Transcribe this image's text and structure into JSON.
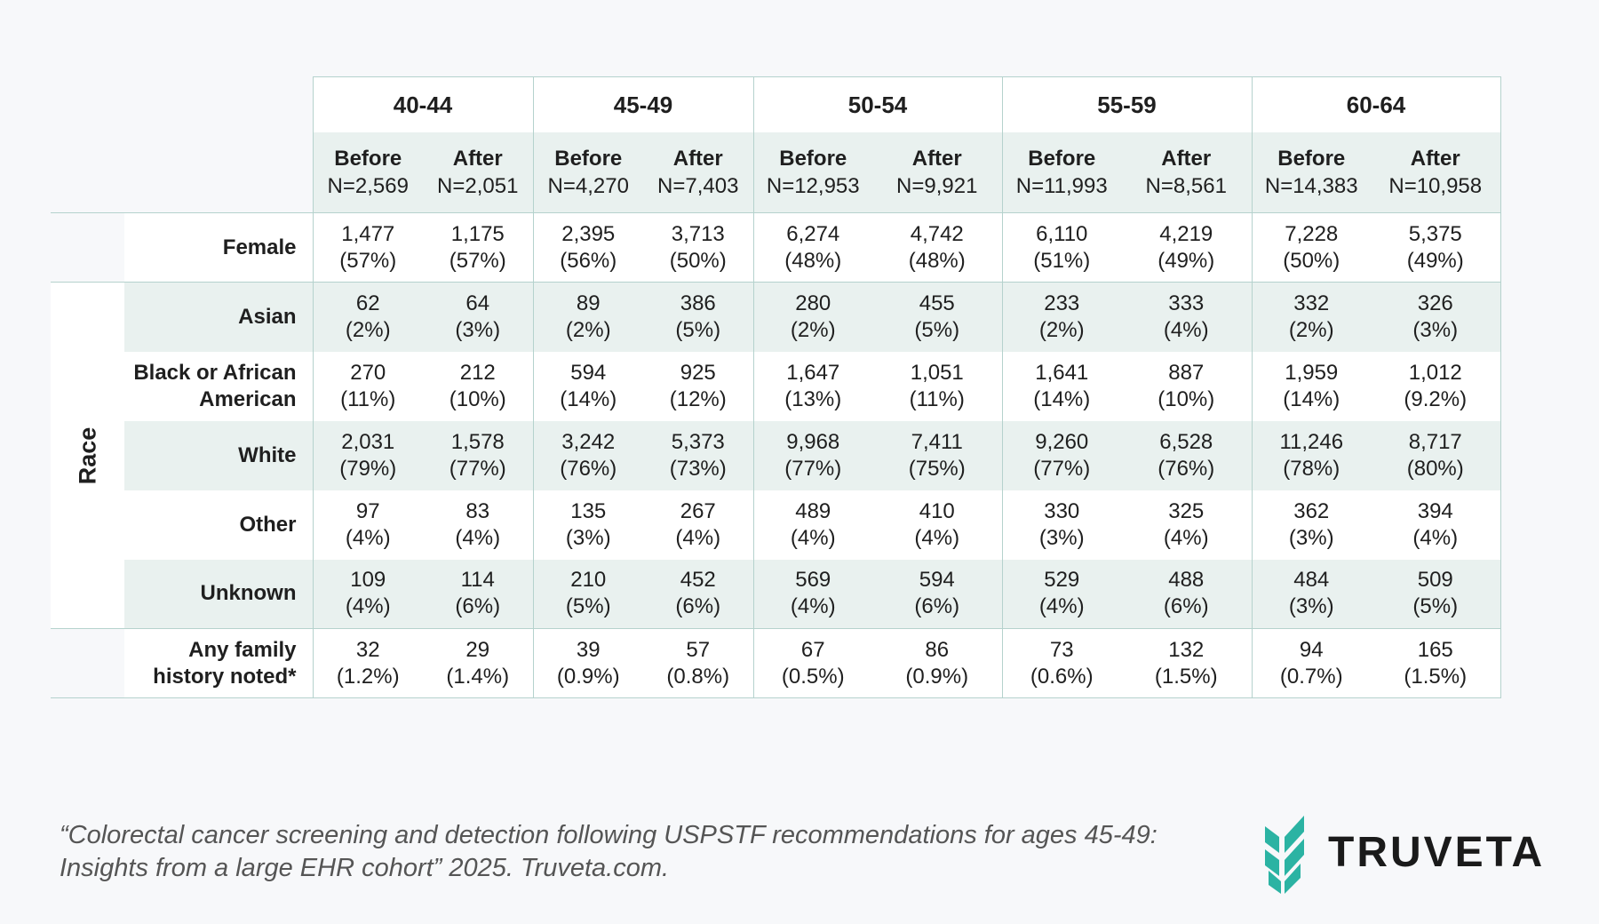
{
  "header": {
    "age_groups": [
      "40-44",
      "45-49",
      "50-54",
      "55-59",
      "60-64"
    ],
    "before_label": "Before",
    "after_label": "After",
    "n_values": [
      [
        "N=2,569",
        "N=2,051"
      ],
      [
        "N=4,270",
        "N=7,403"
      ],
      [
        "N=12,953",
        "N=9,921"
      ],
      [
        "N=11,993",
        "N=8,561"
      ],
      [
        "N=14,383",
        "N=10,958"
      ]
    ]
  },
  "race_label": "Race",
  "rows": [
    {
      "label": "Female",
      "cells": [
        [
          "1,477",
          "(57%)"
        ],
        [
          "1,175",
          "(57%)"
        ],
        [
          "2,395",
          "(56%)"
        ],
        [
          "3,713",
          "(50%)"
        ],
        [
          "6,274",
          "(48%)"
        ],
        [
          "4,742",
          "(48%)"
        ],
        [
          "6,110",
          "(51%)"
        ],
        [
          "4,219",
          "(49%)"
        ],
        [
          "7,228",
          "(50%)"
        ],
        [
          "5,375",
          "(49%)"
        ]
      ]
    },
    {
      "label": "Asian",
      "cells": [
        [
          "62",
          "(2%)"
        ],
        [
          "64",
          "(3%)"
        ],
        [
          "89",
          "(2%)"
        ],
        [
          "386",
          "(5%)"
        ],
        [
          "280",
          "(2%)"
        ],
        [
          "455",
          "(5%)"
        ],
        [
          "233",
          "(2%)"
        ],
        [
          "333",
          "(4%)"
        ],
        [
          "332",
          "(2%)"
        ],
        [
          "326",
          "(3%)"
        ]
      ]
    },
    {
      "label_lines": [
        "Black or African",
        "American"
      ],
      "cells": [
        [
          "270",
          "(11%)"
        ],
        [
          "212",
          "(10%)"
        ],
        [
          "594",
          "(14%)"
        ],
        [
          "925",
          "(12%)"
        ],
        [
          "1,647",
          "(13%)"
        ],
        [
          "1,051",
          "(11%)"
        ],
        [
          "1,641",
          "(14%)"
        ],
        [
          "887",
          "(10%)"
        ],
        [
          "1,959",
          "(14%)"
        ],
        [
          "1,012",
          "(9.2%)"
        ]
      ]
    },
    {
      "label": "White",
      "cells": [
        [
          "2,031",
          "(79%)"
        ],
        [
          "1,578",
          "(77%)"
        ],
        [
          "3,242",
          "(76%)"
        ],
        [
          "5,373",
          "(73%)"
        ],
        [
          "9,968",
          "(77%)"
        ],
        [
          "7,411",
          "(75%)"
        ],
        [
          "9,260",
          "(77%)"
        ],
        [
          "6,528",
          "(76%)"
        ],
        [
          "11,246",
          "(78%)"
        ],
        [
          "8,717",
          "(80%)"
        ]
      ]
    },
    {
      "label": "Other",
      "cells": [
        [
          "97",
          "(4%)"
        ],
        [
          "83",
          "(4%)"
        ],
        [
          "135",
          "(3%)"
        ],
        [
          "267",
          "(4%)"
        ],
        [
          "489",
          "(4%)"
        ],
        [
          "410",
          "(4%)"
        ],
        [
          "330",
          "(3%)"
        ],
        [
          "325",
          "(4%)"
        ],
        [
          "362",
          "(3%)"
        ],
        [
          "394",
          "(4%)"
        ]
      ]
    },
    {
      "label": "Unknown",
      "cells": [
        [
          "109",
          "(4%)"
        ],
        [
          "114",
          "(6%)"
        ],
        [
          "210",
          "(5%)"
        ],
        [
          "452",
          "(6%)"
        ],
        [
          "569",
          "(4%)"
        ],
        [
          "594",
          "(6%)"
        ],
        [
          "529",
          "(4%)"
        ],
        [
          "488",
          "(6%)"
        ],
        [
          "484",
          "(3%)"
        ],
        [
          "509",
          "(5%)"
        ]
      ]
    },
    {
      "label_lines": [
        "Any family",
        "history noted*"
      ],
      "cells": [
        [
          "32",
          "(1.2%)"
        ],
        [
          "29",
          "(1.4%)"
        ],
        [
          "39",
          "(0.9%)"
        ],
        [
          "57",
          "(0.8%)"
        ],
        [
          "67",
          "(0.5%)"
        ],
        [
          "86",
          "(0.9%)"
        ],
        [
          "73",
          "(0.6%)"
        ],
        [
          "132",
          "(1.5%)"
        ],
        [
          "94",
          "(0.7%)"
        ],
        [
          "165",
          "(1.5%)"
        ]
      ]
    }
  ],
  "citation": {
    "line1": "“Colorectal cancer screening and detection following USPSTF recommendations for ages 45-49:",
    "line2": "Insights from a large EHR cohort” 2025. Truveta.com."
  },
  "logo": {
    "text": "TRUVETA",
    "color": "#2bb3a3"
  }
}
